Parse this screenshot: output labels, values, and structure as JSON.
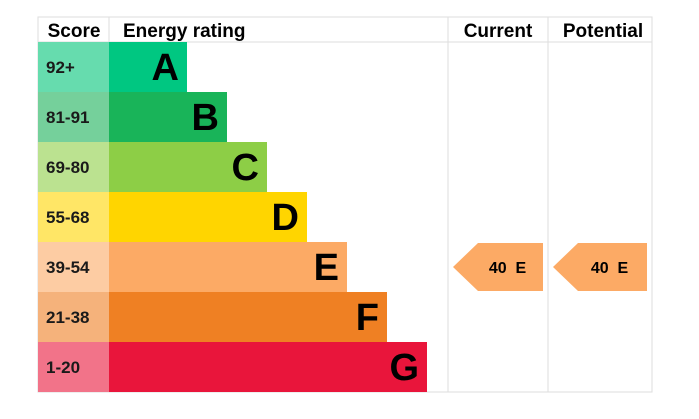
{
  "headers": {
    "score": "Score",
    "rating": "Energy rating",
    "current": "Current",
    "potential": "Potential"
  },
  "chart_data": {
    "type": "table",
    "bands": [
      {
        "score": "92+",
        "letter": "A",
        "color": "#00c781",
        "score_bg": "#66dcae"
      },
      {
        "score": "81-91",
        "letter": "B",
        "color": "#19b459",
        "score_bg": "#75d09b"
      },
      {
        "score": "69-80",
        "letter": "C",
        "color": "#8dce46",
        "score_bg": "#bbe290"
      },
      {
        "score": "55-68",
        "letter": "D",
        "color": "#ffd500",
        "score_bg": "#ffe666"
      },
      {
        "score": "39-54",
        "letter": "E",
        "color": "#fcaa65",
        "score_bg": "#fdcca3"
      },
      {
        "score": "21-38",
        "letter": "F",
        "color": "#ef8023",
        "score_bg": "#f5b27b"
      },
      {
        "score": "1-20",
        "letter": "G",
        "color": "#e9153b",
        "score_bg": "#f27389"
      }
    ],
    "current": {
      "value": 40,
      "letter": "E",
      "label": "40  E",
      "color": "#fcaa65"
    },
    "potential": {
      "value": 40,
      "letter": "E",
      "label": "40  E",
      "color": "#fcaa65"
    }
  }
}
